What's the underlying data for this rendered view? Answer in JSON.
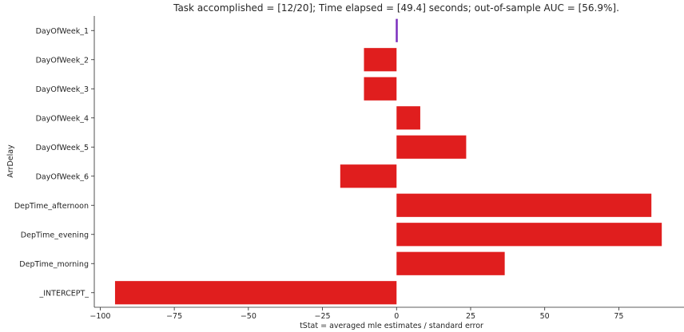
{
  "chart_data": {
    "type": "bar",
    "orientation": "horizontal",
    "title": "Task accomplished = [12/20]; Time elapsed = [49.4] seconds;  out-of-sample AUC = [56.9%].",
    "xlabel": "tStat = averaged mle estimates / standard error",
    "ylabel": "ArrDelay",
    "categories": [
      "DayOfWeek_1",
      "DayOfWeek_2",
      "DayOfWeek_3",
      "DayOfWeek_4",
      "DayOfWeek_5",
      "DayOfWeek_6",
      "DepTime_afternoon",
      "DepTime_evening",
      "DepTime_morning",
      "_INTERCEPT_"
    ],
    "values": [
      0.0,
      -11.0,
      -11.0,
      8.0,
      23.5,
      -19.0,
      86.0,
      89.5,
      36.5,
      -95.0
    ],
    "xlim": [
      -102,
      97
    ],
    "xticks": [
      -100,
      -75,
      -50,
      -25,
      0,
      25,
      50,
      75
    ],
    "xtick_labels": [
      "−100",
      "−75",
      "−50",
      "−25",
      "0",
      "25",
      "50",
      "75"
    ],
    "grid": false,
    "colors": {
      "bar": "#e01e1e",
      "zero_bar": "#7b2fbe",
      "axis": "#262626"
    }
  }
}
